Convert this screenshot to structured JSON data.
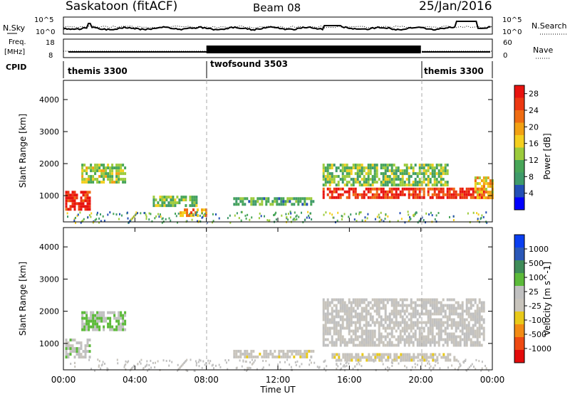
{
  "header": {
    "station": "Saskatoon (fitACF)",
    "beam": "Beam 08",
    "date": "25/Jan/2016"
  },
  "noise_panel": {
    "left_label": "N.Sky",
    "right_label": "N.Search",
    "right_ticks": [
      "10^5",
      "10^0"
    ],
    "left_ticks": [
      "10^5",
      "10^0"
    ]
  },
  "freq_panel": {
    "left_label_1": "Freq.",
    "left_label_2": "[MHz]",
    "left_ticks": [
      "18",
      "8"
    ],
    "right_label": "Nave",
    "right_ticks": [
      "60",
      "0"
    ]
  },
  "cpid_panel": {
    "label": "CPID",
    "segments": [
      {
        "name": "themis 3300",
        "start_h": 0,
        "end_h": 8
      },
      {
        "name": "twofsound 3503",
        "start_h": 8,
        "end_h": 20
      },
      {
        "name": "themis 3300",
        "start_h": 20,
        "end_h": 24
      }
    ]
  },
  "colors": {
    "power": [
      "#0000ff",
      "#234fb5",
      "#3f9a6a",
      "#48a658",
      "#9ccb3c",
      "#f4cf1f",
      "#f2a113",
      "#ef6c12",
      "#ec3812",
      "#e8130f"
    ],
    "velocity": [
      "#0a3ef0",
      "#2a58b8",
      "#3f8c59",
      "#5cba3a",
      "#c0c0c0",
      "#c8c4bc",
      "#e8c91a",
      "#f28b14",
      "#ee4a12",
      "#e30b0b"
    ]
  },
  "chart_data": [
    {
      "type": "heatmap",
      "name": "power",
      "xlabel": "",
      "ylabel": "Slant Range [km]",
      "ylim": [
        180,
        4600
      ],
      "yticks": [
        1000,
        2000,
        3000,
        4000
      ],
      "ytick_labels": [
        "1000",
        "2000",
        "3000",
        "4000"
      ],
      "colorbar_label": "Power [dB]",
      "colorbar_ticks": [
        "4",
        "8",
        "12",
        "16",
        "20",
        "24",
        "28"
      ],
      "colorbar_range": [
        0,
        30
      ],
      "features": [
        {
          "t0": 0.1,
          "t1": 1.5,
          "r0": 550,
          "r1": 1150,
          "level": 28
        },
        {
          "t0": 1.0,
          "t1": 3.5,
          "r0": 1450,
          "r1": 2000,
          "level": 14
        },
        {
          "t0": 5.0,
          "t1": 7.5,
          "r0": 650,
          "r1": 1000,
          "level": 12
        },
        {
          "t0": 6.5,
          "t1": 8.0,
          "r0": 350,
          "r1": 600,
          "level": 20
        },
        {
          "t0": 9.5,
          "t1": 14.0,
          "r0": 750,
          "r1": 950,
          "level": 10
        },
        {
          "t0": 14.5,
          "t1": 23.5,
          "r0": 900,
          "r1": 1250,
          "level": 27
        },
        {
          "t0": 14.5,
          "t1": 21.5,
          "r0": 1300,
          "r1": 2000,
          "level": 12
        },
        {
          "t0": 23.0,
          "t1": 24.0,
          "r0": 900,
          "r1": 1600,
          "level": 18
        }
      ]
    },
    {
      "type": "heatmap",
      "name": "velocity",
      "xlabel": "Time UT",
      "ylabel": "Slant Range [km]",
      "ylim": [
        180,
        4600
      ],
      "yticks": [
        1000,
        2000,
        3000,
        4000
      ],
      "ytick_labels": [
        "1000",
        "2000",
        "3000",
        "4000"
      ],
      "colorbar_label": "Velocity [m s^-1]",
      "colorbar_ticks": [
        "1000",
        "500",
        "100",
        "25",
        "-25",
        "-100",
        "-500",
        "-1000"
      ],
      "colorbar_range": [
        -1000,
        1000
      ],
      "x_ticks": [
        "00:00",
        "04:00",
        "08:00",
        "12:00",
        "16:00",
        "20:00",
        "00:00"
      ],
      "xlim": [
        0,
        24
      ],
      "features": [
        {
          "t0": 0.1,
          "t1": 1.5,
          "r0": 550,
          "r1": 1150,
          "level": 100
        },
        {
          "t0": 1.0,
          "t1": 3.5,
          "r0": 1450,
          "r1": 2000,
          "level": 200
        },
        {
          "t0": 9.5,
          "t1": 14.0,
          "r0": 600,
          "r1": 800,
          "level": -100
        },
        {
          "t0": 14.5,
          "t1": 23.5,
          "r0": 900,
          "r1": 2400,
          "level": 0
        },
        {
          "t0": 15.0,
          "t1": 22.0,
          "r0": 500,
          "r1": 700,
          "level": -100
        }
      ]
    }
  ]
}
